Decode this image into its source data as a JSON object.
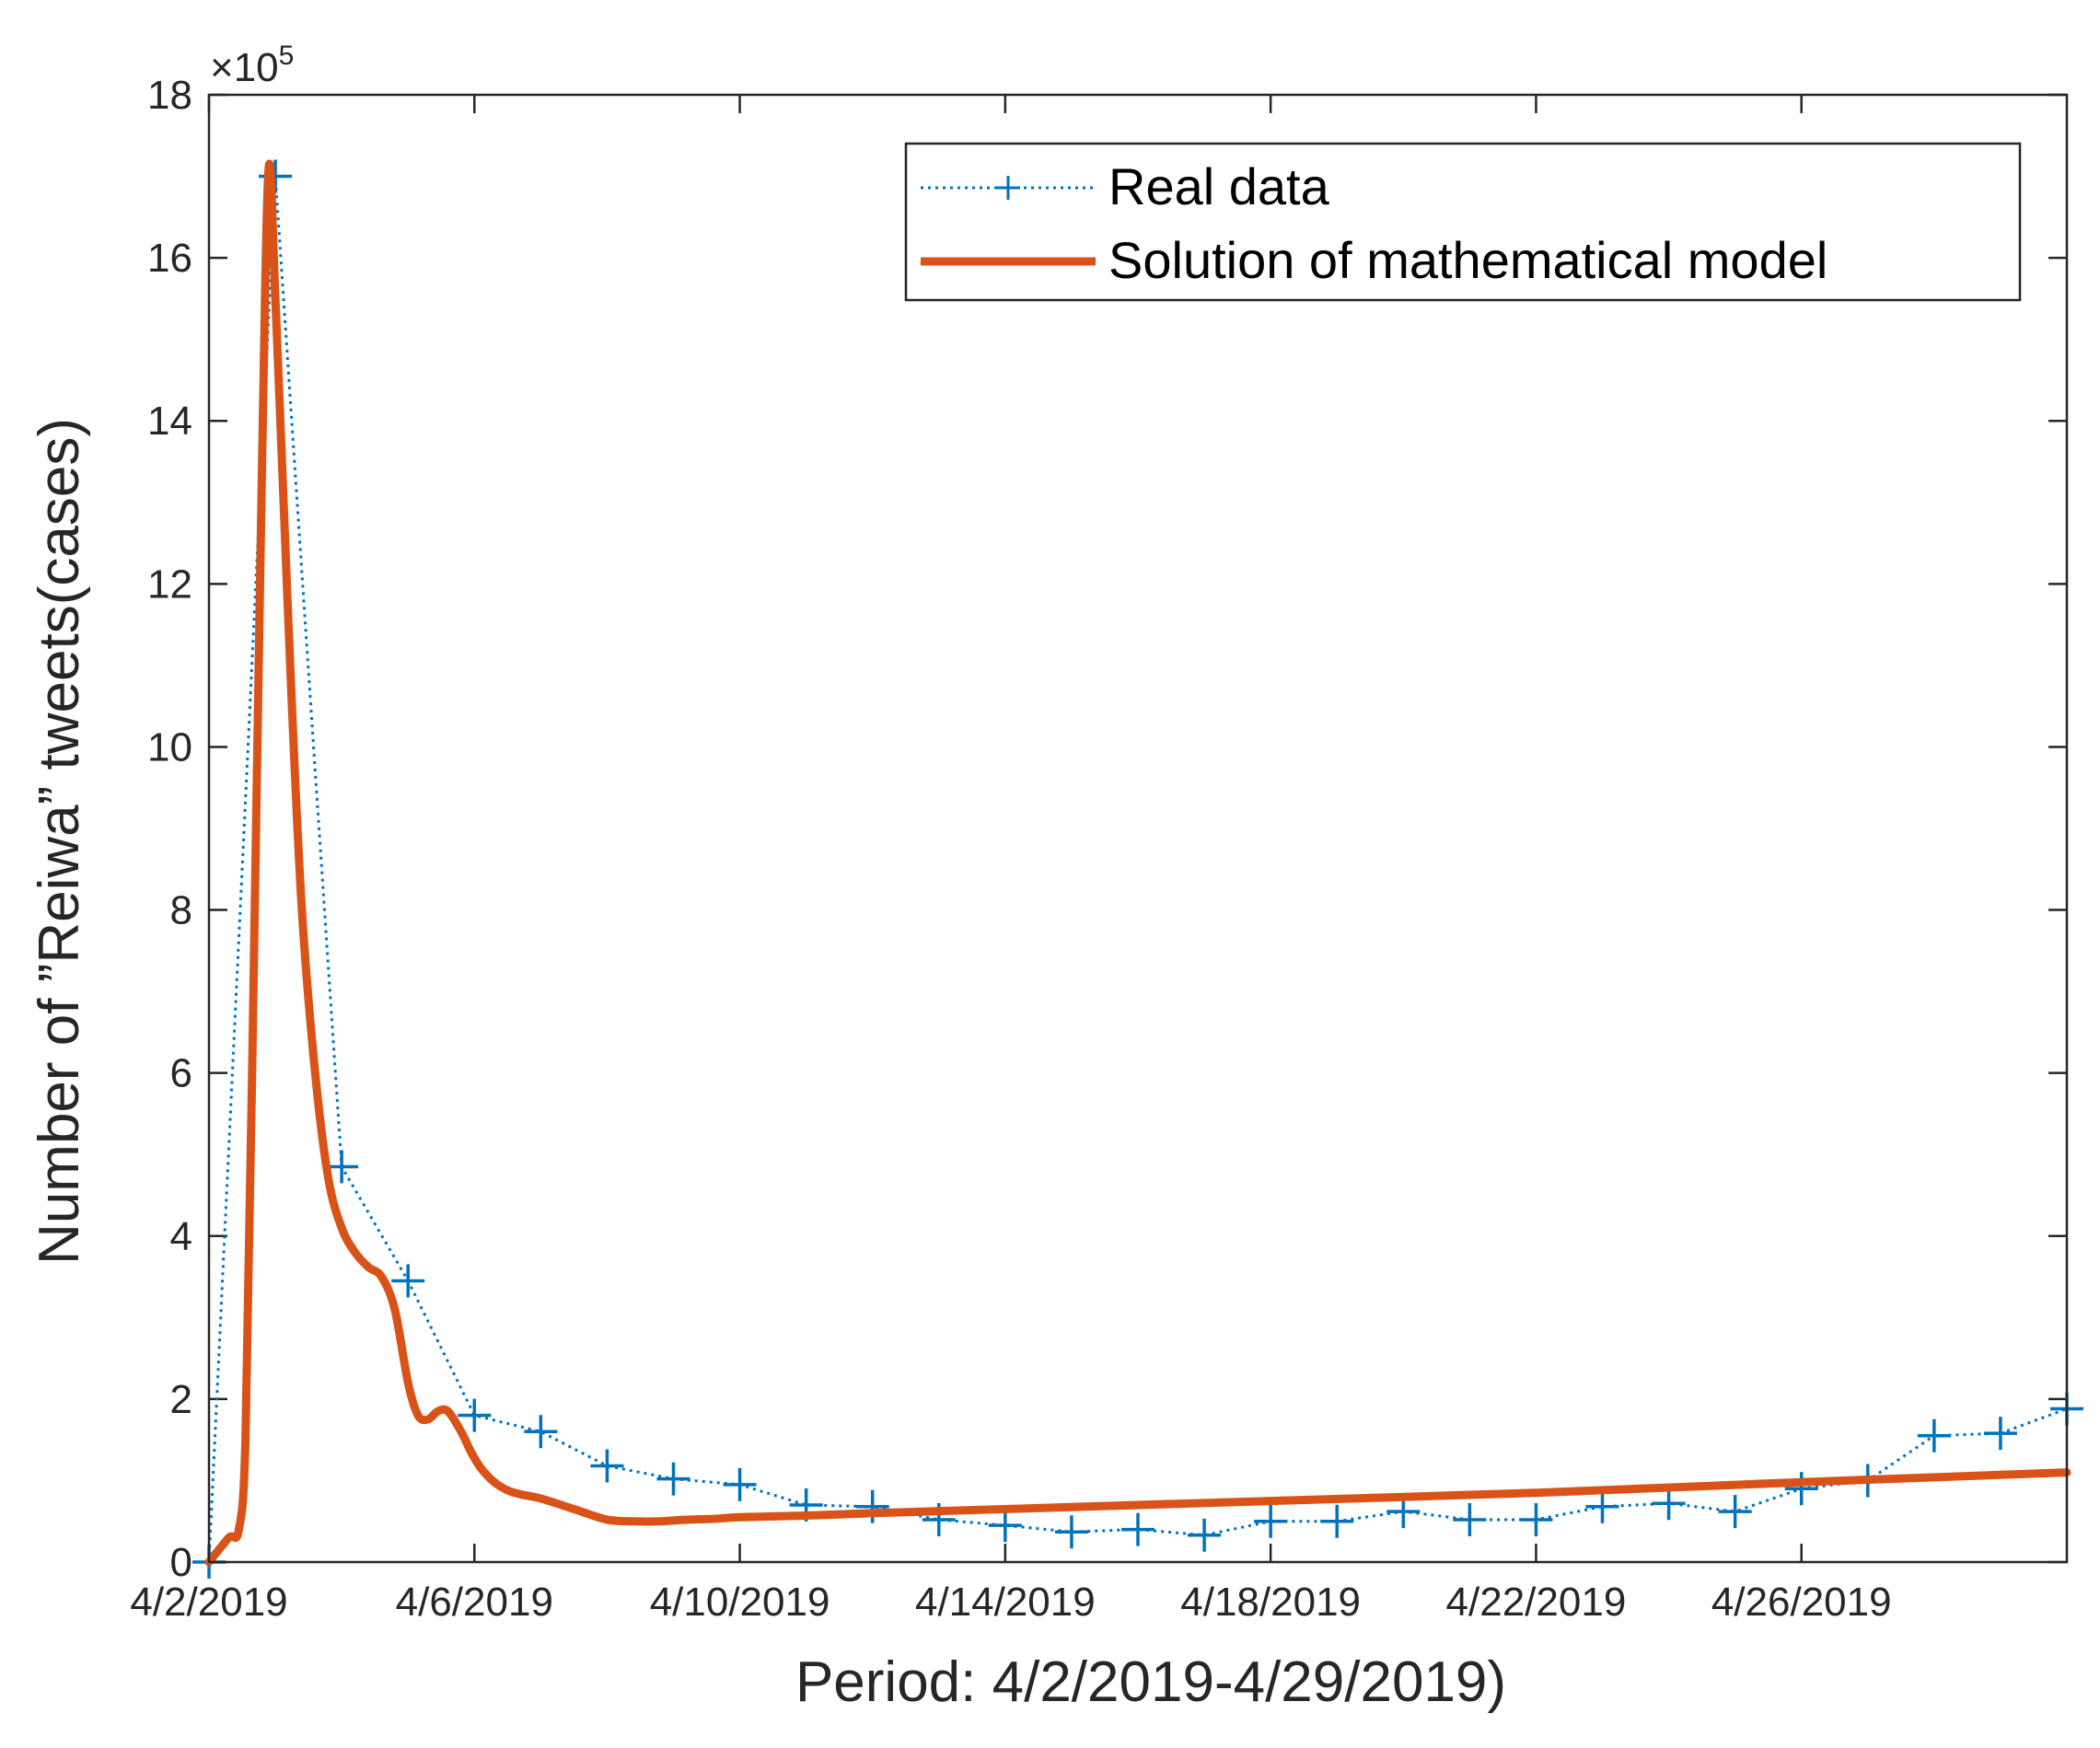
{
  "chart_data": {
    "type": "line",
    "title": "",
    "xlabel": "Period: 4/2/2019-4/29/2019)",
    "ylabel": "Number of ”Reiwa” tweets(cases)",
    "y_multiplier": "×10",
    "y_multiplier_exp": "5",
    "xlim": [
      0,
      28
    ],
    "ylim": [
      0,
      18
    ],
    "x_ticks": [
      {
        "x": 0,
        "label": "4/2/2019"
      },
      {
        "x": 4,
        "label": "4/6/2019"
      },
      {
        "x": 8,
        "label": "4/10/2019"
      },
      {
        "x": 12,
        "label": "4/14/2019"
      },
      {
        "x": 16,
        "label": "4/18/2019"
      },
      {
        "x": 20,
        "label": "4/22/2019"
      },
      {
        "x": 24,
        "label": "4/26/2019"
      }
    ],
    "y_ticks": [
      {
        "y": 0,
        "label": "0"
      },
      {
        "y": 2,
        "label": "2"
      },
      {
        "y": 4,
        "label": "4"
      },
      {
        "y": 6,
        "label": "6"
      },
      {
        "y": 8,
        "label": "8"
      },
      {
        "y": 10,
        "label": "10"
      },
      {
        "y": 12,
        "label": "12"
      },
      {
        "y": 14,
        "label": "14"
      },
      {
        "y": 16,
        "label": "16"
      },
      {
        "y": 18,
        "label": "18"
      }
    ],
    "grid": false,
    "legend_position": "top-right",
    "series": [
      {
        "name": "Real data",
        "style": "dotted-with-plus-markers",
        "color": "#0072BD",
        "x": [
          0,
          1,
          2,
          3,
          4,
          5,
          6,
          7,
          8,
          9,
          10,
          11,
          12,
          13,
          14,
          15,
          16,
          17,
          18,
          19,
          20,
          21,
          22,
          23,
          24,
          25,
          26,
          27,
          28
        ],
        "y": [
          0,
          17,
          4.85,
          3.45,
          1.8,
          1.6,
          1.18,
          1.02,
          0.95,
          0.7,
          0.68,
          0.52,
          0.45,
          0.37,
          0.4,
          0.33,
          0.5,
          0.5,
          0.62,
          0.52,
          0.52,
          0.68,
          0.72,
          0.62,
          0.9,
          1.0,
          1.55,
          1.58,
          1.88
        ]
      },
      {
        "name": "Solution of mathematical model",
        "style": "solid",
        "color": "#D95319",
        "x": [
          0,
          0.3,
          0.45,
          0.55,
          0.65,
          0.8,
          0.9,
          1.0,
          1.1,
          1.25,
          1.4,
          1.6,
          1.8,
          2.0,
          2.2,
          2.4,
          2.6,
          2.8,
          3.0,
          3.15,
          3.3,
          3.45,
          3.6,
          3.8,
          3.95,
          4.1,
          4.3,
          4.5,
          4.7,
          5.0,
          5.5,
          6.0,
          6.4,
          6.8,
          7.2,
          7.6,
          8.0,
          9.0,
          10.0,
          12.0,
          16.0,
          20.0,
          24.0,
          28.0
        ],
        "y": [
          0,
          0.3,
          0.4,
          1.5,
          6.0,
          13.5,
          17.1,
          15.5,
          13.5,
          10.5,
          8.0,
          6.0,
          4.7,
          4.1,
          3.8,
          3.62,
          3.5,
          3.1,
          2.2,
          1.8,
          1.75,
          1.85,
          1.85,
          1.6,
          1.35,
          1.15,
          0.98,
          0.88,
          0.83,
          0.78,
          0.65,
          0.52,
          0.5,
          0.5,
          0.52,
          0.53,
          0.55,
          0.57,
          0.6,
          0.65,
          0.75,
          0.85,
          0.98,
          1.1
        ]
      }
    ]
  }
}
